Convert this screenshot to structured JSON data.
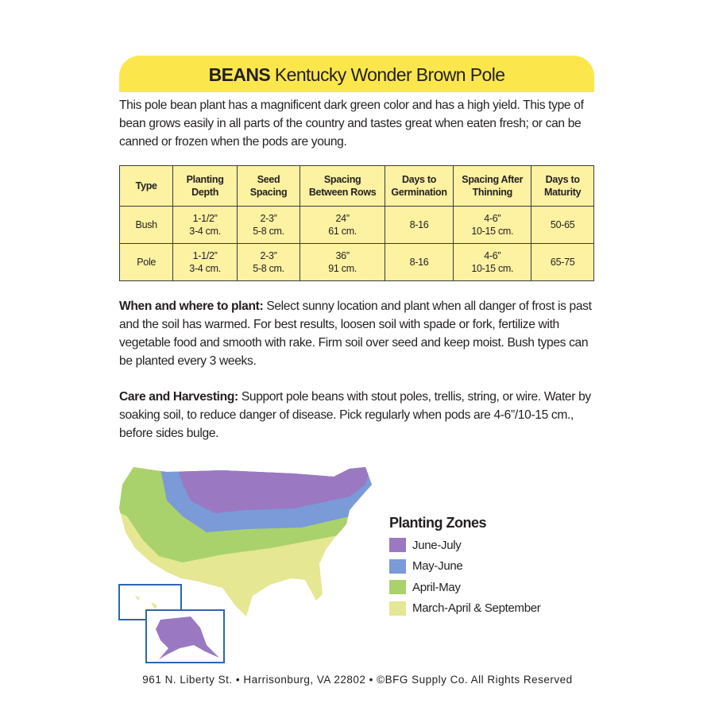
{
  "header": {
    "title_bold": "BEANS",
    "title_rest": "Kentucky Wonder Brown Pole"
  },
  "intro": "This pole bean plant has a magnificent dark green color and has a high yield.  This type of bean grows easily in all parts of the country and tastes great when eaten fresh; or can be canned or frozen when the pods are young.",
  "table": {
    "headers": [
      "Type",
      "Planting\nDepth",
      "Seed\nSpacing",
      "Spacing\nBetween Rows",
      "Days to\nGermination",
      "Spacing After\nThinning",
      "Days to\nMaturity"
    ],
    "rows": [
      [
        "Bush",
        "1-1/2”\n3-4 cm.",
        "2-3”\n5-8 cm.",
        "24”\n61 cm.",
        "8-16",
        "4-6”\n10-15 cm.",
        "50-65"
      ],
      [
        "Pole",
        "1-1/2”\n3-4 cm.",
        "2-3”\n5-8 cm.",
        "36”\n91 cm.",
        "8-16",
        "4-6”\n10-15 cm.",
        "65-75"
      ]
    ]
  },
  "sections": [
    {
      "heading": "When and where to plant:",
      "text": "Select sunny location and plant when all danger of frost is past and the soil has warmed. For best results, loosen soil with spade or fork, fertilize with vegetable food and smooth with rake. Firm soil over seed and keep moist. Bush types can be planted every 3 weeks."
    },
    {
      "heading": "Care and Harvesting:",
      "text": "Support pole beans with stout poles, trellis, string, or wire. Water by soaking soil, to reduce danger of disease. Pick regularly when pods are 4-6”/10-15 cm., before sides bulge."
    }
  ],
  "legend": {
    "title": "Planting Zones",
    "items": [
      {
        "label": "June-July",
        "color": "#9b78c2"
      },
      {
        "label": "May-June",
        "color": "#7a9ad8"
      },
      {
        "label": "April-May",
        "color": "#a9d26c"
      },
      {
        "label": "March-April & September",
        "color": "#e5e793"
      }
    ]
  },
  "footer": "961 N. Liberty St. • Harrisonburg, VA 22802 • ©BFG Supply Co. All Rights Reserved"
}
